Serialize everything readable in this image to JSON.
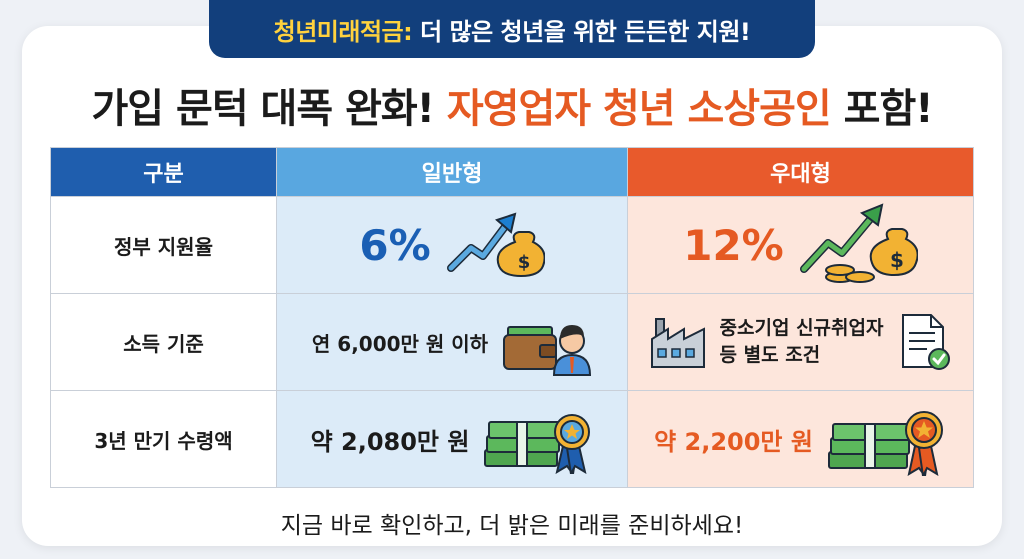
{
  "banner": {
    "highlight": "청년미래적금:",
    "rest": "더 많은 청년을 위한 든든한 지원!"
  },
  "headline": {
    "part1": "가입 문턱 대폭 완화!",
    "accent": "자영업자 청년 소상공인",
    "part2": "포함!"
  },
  "table": {
    "headers": [
      "구분",
      "일반형",
      "우대형"
    ],
    "rows": [
      {
        "label": "정부 지원율",
        "general": "6%",
        "preferred": "12%"
      },
      {
        "label": "소득 기준",
        "general": "연 6,000만 원 이하",
        "preferred_line1": "중소기업 신규취업자",
        "preferred_line2": "등 별도 조건"
      },
      {
        "label": "3년 만기 수령액",
        "general": "약 2,080만 원",
        "preferred": "약 2,200만 원"
      }
    ]
  },
  "footer": "지금 바로 확인하고, 더 밝은 미래를 준비하세요!",
  "colors": {
    "navy": "#123f7c",
    "blue_header": "#59a7e0",
    "orange": "#e55a22",
    "yellow": "#ffd23e"
  }
}
